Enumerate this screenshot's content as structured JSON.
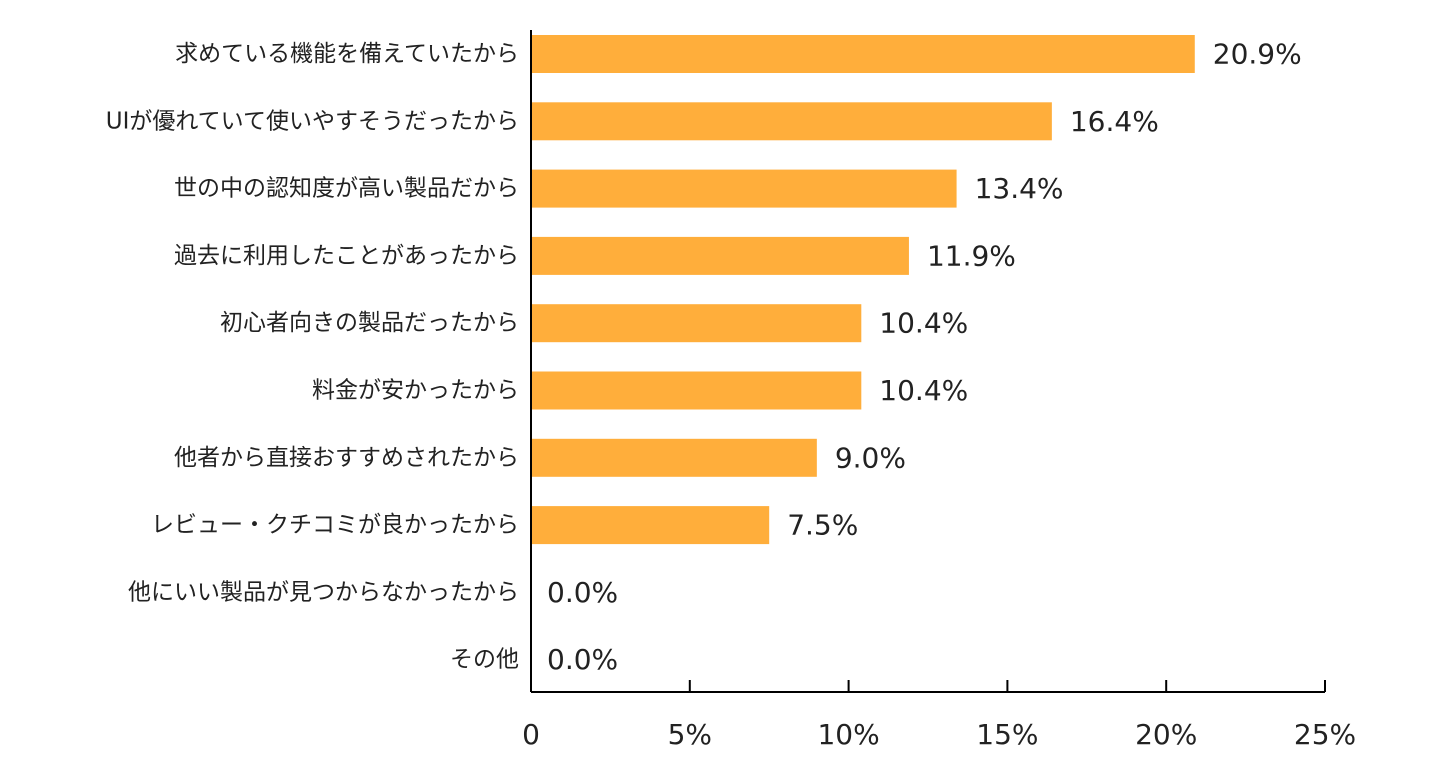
{
  "chart_data": {
    "type": "bar",
    "orientation": "horizontal",
    "categories": [
      "求めている機能を備えていたから",
      "UIが優れていて使いやすそうだったから",
      "世の中の認知度が高い製品だから",
      "過去に利用したことがあったから",
      "初心者向きの製品だったから",
      "料金が安かったから",
      "他者から直接おすすめされたから",
      "レビュー・クチコミが良かったから",
      "他にいい製品が見つからなかったから",
      "その他"
    ],
    "values": [
      20.9,
      16.4,
      13.4,
      11.9,
      10.4,
      10.4,
      9.0,
      7.5,
      0.0,
      0.0
    ],
    "value_labels": [
      "20.9%",
      "16.4%",
      "13.4%",
      "11.9%",
      "10.4%",
      "10.4%",
      "9.0%",
      "7.5%",
      "0.0%",
      "0.0%"
    ],
    "xlim": [
      0,
      25
    ],
    "xticks": [
      0,
      5,
      10,
      15,
      20,
      25
    ],
    "xtick_labels": [
      "0",
      "5%",
      "10%",
      "15%",
      "20%",
      "25%"
    ],
    "title": "",
    "xlabel": "",
    "ylabel": "",
    "grid": false,
    "bar_color": "#FFAE3B"
  }
}
